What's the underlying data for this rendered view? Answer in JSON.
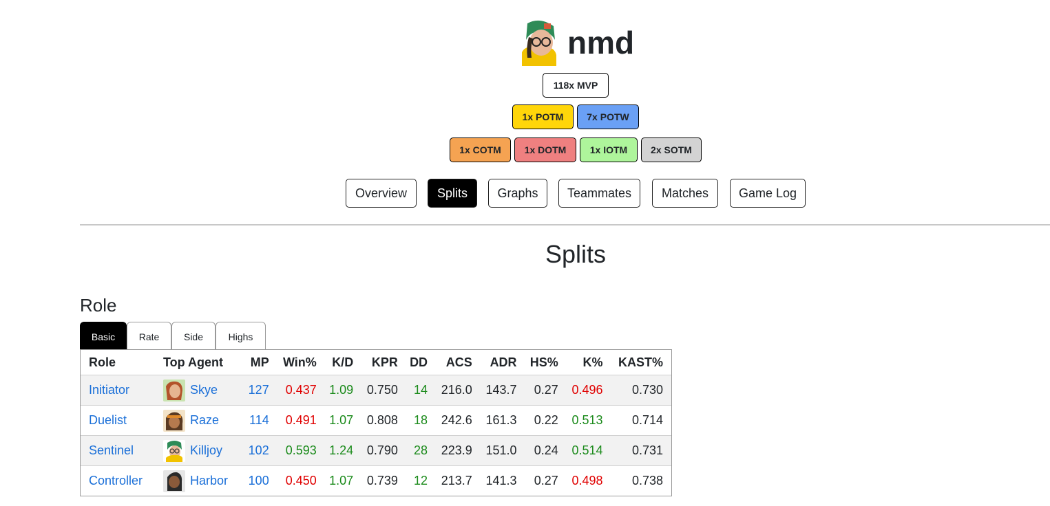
{
  "player": {
    "name": "nmd"
  },
  "awards": {
    "mvp": "118x MVP",
    "potm": "1x POTM",
    "potw": "7x POTW",
    "cotm": "1x COTM",
    "dotm": "1x DOTM",
    "iotm": "1x IOTM",
    "sotm": "2x SOTM"
  },
  "colors": {
    "potm": "#ffd60a",
    "potw": "#6aa0f5",
    "cotm": "#f5a352",
    "dotm": "#ef8080",
    "iotm": "#aef59b",
    "sotm": "#d3d3d3",
    "link": "#1a6fd8",
    "negative": "#e00000",
    "positive": "#1a8a1a"
  },
  "nav": [
    "Overview",
    "Splits",
    "Graphs",
    "Teammates",
    "Matches",
    "Game Log"
  ],
  "page_title": "Splits",
  "section": {
    "title": "Role"
  },
  "tabs": [
    "Basic",
    "Rate",
    "Side",
    "Highs"
  ],
  "table": {
    "headers": [
      "Role",
      "Top Agent",
      "MP",
      "Win%",
      "K/D",
      "KPR",
      "DD",
      "ACS",
      "ADR",
      "HS%",
      "K%",
      "KAST%"
    ],
    "rows": [
      {
        "role": "Initiator",
        "agent": "Skye",
        "agent_icon": "skye-icon",
        "mp": "127",
        "win": "0.437",
        "kd": "1.09",
        "kpr": "0.750",
        "dd": "14",
        "acs": "216.0",
        "adr": "143.7",
        "hs": "0.27",
        "k": "0.496",
        "kast": "0.730"
      },
      {
        "role": "Duelist",
        "agent": "Raze",
        "agent_icon": "raze-icon",
        "mp": "114",
        "win": "0.491",
        "kd": "1.07",
        "kpr": "0.808",
        "dd": "18",
        "acs": "242.6",
        "adr": "161.3",
        "hs": "0.22",
        "k": "0.513",
        "kast": "0.714"
      },
      {
        "role": "Sentinel",
        "agent": "Killjoy",
        "agent_icon": "killjoy-icon",
        "mp": "102",
        "win": "0.593",
        "kd": "1.24",
        "kpr": "0.790",
        "dd": "28",
        "acs": "223.9",
        "adr": "151.0",
        "hs": "0.24",
        "k": "0.514",
        "kast": "0.731"
      },
      {
        "role": "Controller",
        "agent": "Harbor",
        "agent_icon": "harbor-icon",
        "mp": "100",
        "win": "0.450",
        "kd": "1.07",
        "kpr": "0.739",
        "dd": "12",
        "acs": "213.7",
        "adr": "141.3",
        "hs": "0.27",
        "k": "0.498",
        "kast": "0.738"
      }
    ]
  }
}
